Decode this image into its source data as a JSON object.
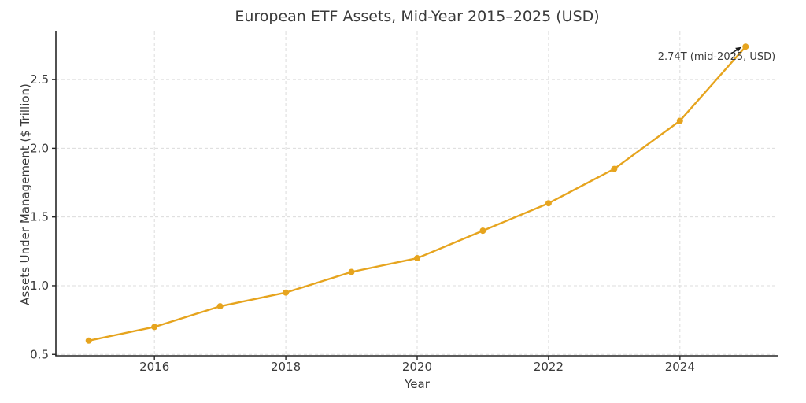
{
  "chart_data": {
    "type": "line",
    "title": "European ETF Assets, Mid-Year 2015–2025 (USD)",
    "xlabel": "Year",
    "ylabel": "Assets Under Management ($ Trillion)",
    "x": [
      2015,
      2016,
      2017,
      2018,
      2019,
      2020,
      2021,
      2022,
      2023,
      2024,
      2025
    ],
    "values": [
      0.6,
      0.7,
      0.85,
      0.95,
      1.1,
      1.2,
      1.4,
      1.6,
      1.85,
      2.2,
      2.74
    ],
    "xticks": [
      2016,
      2018,
      2020,
      2022,
      2024
    ],
    "yticks": [
      0.5,
      1.0,
      1.5,
      2.0,
      2.5
    ],
    "xlim": [
      2014.5,
      2025.5
    ],
    "ylim": [
      0.49,
      2.85
    ],
    "grid": true,
    "grid_style": "dashed",
    "legend": "none",
    "annotation": {
      "text": "2.74T (mid-2025, USD)",
      "x": 2025,
      "y": 2.74
    },
    "colors": {
      "line": "#E6A41E",
      "marker": "#E6A41E",
      "text": "#3a3a3a",
      "axis": "#262626",
      "grid": "#dcdcdc",
      "annotation_arrow": "#1a1a1a"
    }
  }
}
